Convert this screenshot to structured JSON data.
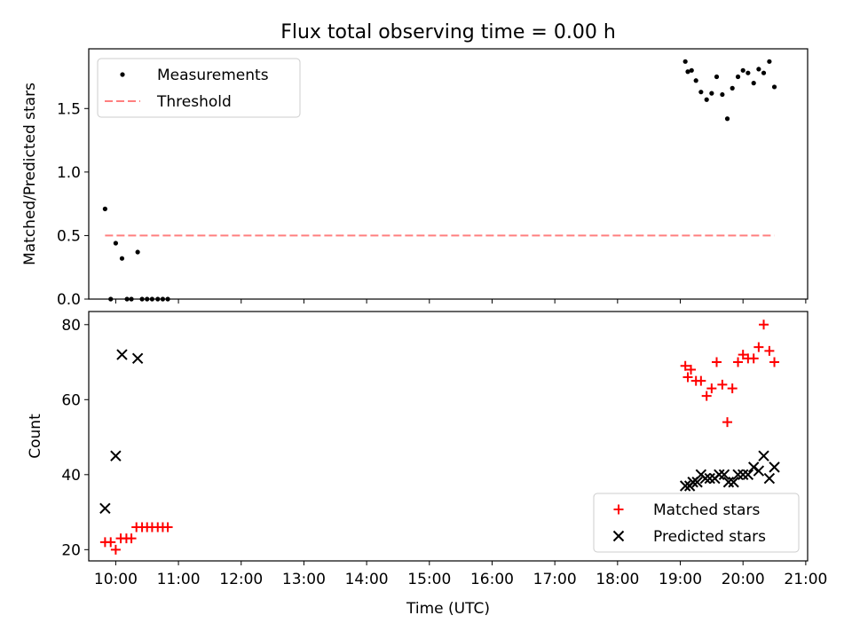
{
  "chart_data": {
    "title": "Flux total observing time = 0.00 h",
    "xlabel": "Time (UTC)",
    "xlim": [
      9.57,
      21.03
    ],
    "xticks": [
      {
        "value": 10,
        "label": "10:00"
      },
      {
        "value": 11,
        "label": "11:00"
      },
      {
        "value": 12,
        "label": "12:00"
      },
      {
        "value": 13,
        "label": "13:00"
      },
      {
        "value": 14,
        "label": "14:00"
      },
      {
        "value": 15,
        "label": "15:00"
      },
      {
        "value": 16,
        "label": "16:00"
      },
      {
        "value": 17,
        "label": "17:00"
      },
      {
        "value": 18,
        "label": "18:00"
      },
      {
        "value": 19,
        "label": "19:00"
      },
      {
        "value": 20,
        "label": "20:00"
      },
      {
        "value": 21,
        "label": "21:00"
      }
    ],
    "panels": [
      {
        "type": "scatter",
        "ylabel": "Matched/Predicted stars",
        "ylim": [
          0,
          1.97
        ],
        "yticks": [
          {
            "value": 0,
            "label": "0.0"
          },
          {
            "value": 0.5,
            "label": "0.5"
          },
          {
            "value": 1.0,
            "label": "1.0"
          },
          {
            "value": 1.5,
            "label": "1.5"
          }
        ],
        "legend_position": "upper-left",
        "series": [
          {
            "name": "Measurements",
            "marker": "dot",
            "color": "#000000",
            "points": [
              [
                9.83,
                0.71
              ],
              [
                9.92,
                0.0
              ],
              [
                10.0,
                0.44
              ],
              [
                10.1,
                0.32
              ],
              [
                10.18,
                0.0
              ],
              [
                10.25,
                0.0
              ],
              [
                10.35,
                0.37
              ],
              [
                10.42,
                0.0
              ],
              [
                10.5,
                0.0
              ],
              [
                10.58,
                0.0
              ],
              [
                10.67,
                0.0
              ],
              [
                10.75,
                0.0
              ],
              [
                10.83,
                0.0
              ],
              [
                19.08,
                1.87
              ],
              [
                19.12,
                1.79
              ],
              [
                19.18,
                1.8
              ],
              [
                19.25,
                1.72
              ],
              [
                19.33,
                1.63
              ],
              [
                19.42,
                1.57
              ],
              [
                19.5,
                1.62
              ],
              [
                19.58,
                1.75
              ],
              [
                19.67,
                1.61
              ],
              [
                19.75,
                1.42
              ],
              [
                19.83,
                1.66
              ],
              [
                19.92,
                1.75
              ],
              [
                20.0,
                1.8
              ],
              [
                20.08,
                1.78
              ],
              [
                20.17,
                1.7
              ],
              [
                20.25,
                1.81
              ],
              [
                20.33,
                1.78
              ],
              [
                20.42,
                1.87
              ],
              [
                20.5,
                1.67
              ]
            ]
          },
          {
            "name": "Threshold",
            "style": "dashed",
            "color": "#ff7f7f",
            "x": [
              9.83,
              20.5
            ],
            "y": [
              0.5,
              0.5
            ]
          }
        ]
      },
      {
        "type": "scatter",
        "ylabel": "Count",
        "ylim": [
          17,
          83.5
        ],
        "yticks": [
          {
            "value": 20,
            "label": "20"
          },
          {
            "value": 40,
            "label": "40"
          },
          {
            "value": 60,
            "label": "60"
          },
          {
            "value": 80,
            "label": "80"
          }
        ],
        "legend_position": "lower-right",
        "series": [
          {
            "name": "Matched stars",
            "marker": "plus",
            "color": "#ff0000",
            "points": [
              [
                9.83,
                22
              ],
              [
                9.92,
                22
              ],
              [
                10.0,
                20
              ],
              [
                10.08,
                23
              ],
              [
                10.17,
                23
              ],
              [
                10.25,
                23
              ],
              [
                10.33,
                26
              ],
              [
                10.42,
                26
              ],
              [
                10.5,
                26
              ],
              [
                10.58,
                26
              ],
              [
                10.67,
                26
              ],
              [
                10.75,
                26
              ],
              [
                10.83,
                26
              ],
              [
                19.08,
                69
              ],
              [
                19.12,
                66
              ],
              [
                19.17,
                68
              ],
              [
                19.25,
                65
              ],
              [
                19.33,
                65
              ],
              [
                19.42,
                61
              ],
              [
                19.5,
                63
              ],
              [
                19.58,
                70
              ],
              [
                19.67,
                64
              ],
              [
                19.75,
                54
              ],
              [
                19.83,
                63
              ],
              [
                19.92,
                70
              ],
              [
                20.0,
                72
              ],
              [
                20.08,
                71
              ],
              [
                20.17,
                71
              ],
              [
                20.25,
                74
              ],
              [
                20.33,
                80
              ],
              [
                20.42,
                73
              ],
              [
                20.5,
                70
              ]
            ]
          },
          {
            "name": "Predicted stars",
            "marker": "x",
            "color": "#000000",
            "points": [
              [
                9.83,
                31
              ],
              [
                10.0,
                45
              ],
              [
                10.1,
                72
              ],
              [
                10.35,
                71
              ],
              [
                19.08,
                37
              ],
              [
                19.15,
                37
              ],
              [
                19.2,
                38
              ],
              [
                19.27,
                38
              ],
              [
                19.33,
                40
              ],
              [
                19.4,
                39
              ],
              [
                19.47,
                39
              ],
              [
                19.55,
                39
              ],
              [
                19.62,
                40
              ],
              [
                19.7,
                40
              ],
              [
                19.77,
                38
              ],
              [
                19.85,
                38
              ],
              [
                19.92,
                40
              ],
              [
                20.0,
                40
              ],
              [
                20.08,
                40
              ],
              [
                20.17,
                42
              ],
              [
                20.25,
                41
              ],
              [
                20.33,
                45
              ],
              [
                20.42,
                39
              ],
              [
                20.5,
                42
              ]
            ]
          }
        ]
      }
    ]
  }
}
